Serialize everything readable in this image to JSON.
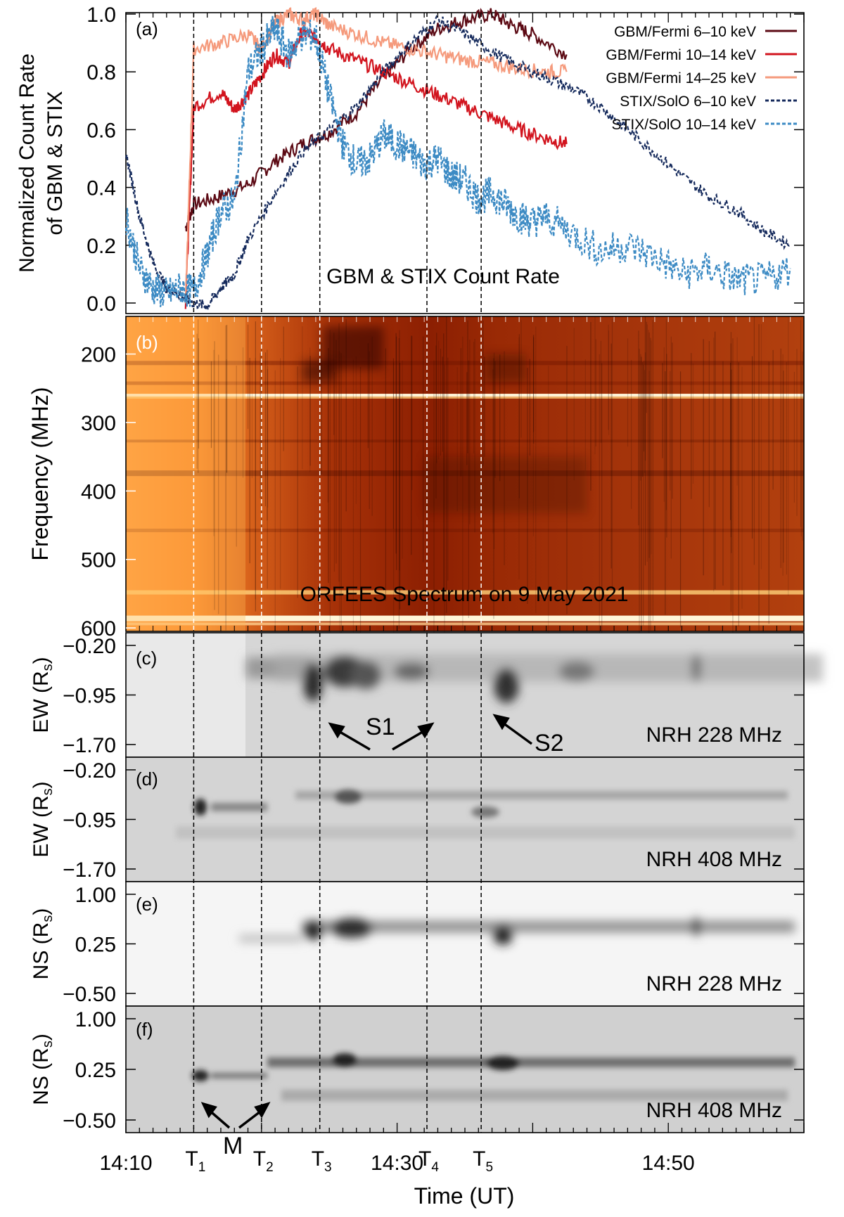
{
  "chart_data": [
    {
      "panel": "(a)",
      "type": "line",
      "title": "GBM & STIX Count Rate",
      "ylabel_line1": "Normalized Count Rate",
      "ylabel_line2": "of GBM & STIX",
      "ylim": [
        0,
        1.0
      ],
      "yticks": [
        "0.0",
        "0.2",
        "0.4",
        "0.6",
        "0.8",
        "1.0"
      ],
      "series": [
        {
          "name": "GBM/Fermi 6–10 keV",
          "color": "#5c0a14",
          "style": "solid",
          "t": [
            14.4,
            15,
            17,
            19,
            21,
            23,
            25,
            27,
            29,
            31,
            33,
            35,
            37,
            38.5,
            40,
            42.5
          ],
          "values": [
            0.26,
            0.34,
            0.37,
            0.41,
            0.49,
            0.55,
            0.59,
            0.66,
            0.78,
            0.88,
            0.95,
            0.98,
            1.0,
            0.96,
            0.93,
            0.86
          ]
        },
        {
          "name": "GBM/Fermi 10–14 keV",
          "color": "#d2141e",
          "style": "solid",
          "t": [
            14.4,
            15,
            17,
            18,
            19,
            20,
            21,
            22,
            23,
            24,
            25,
            27,
            29,
            31,
            33,
            35,
            37,
            39,
            41,
            42.5
          ],
          "values": [
            0.0,
            0.68,
            0.73,
            0.67,
            0.72,
            0.79,
            0.86,
            0.83,
            0.94,
            0.92,
            0.88,
            0.84,
            0.8,
            0.76,
            0.72,
            0.68,
            0.64,
            0.6,
            0.57,
            0.55
          ]
        },
        {
          "name": "GBM/Fermi 14–25 keV",
          "color": "#f59a7c",
          "style": "solid",
          "t": [
            14.4,
            15,
            17,
            19,
            20,
            21,
            22,
            23,
            24,
            25,
            27,
            29,
            31,
            33,
            35,
            37,
            39,
            41,
            42.5
          ],
          "values": [
            0.0,
            0.88,
            0.9,
            0.93,
            0.88,
            0.97,
            1.0,
            0.98,
            1.0,
            0.96,
            0.93,
            0.9,
            0.88,
            0.86,
            0.84,
            0.83,
            0.81,
            0.8,
            0.8
          ]
        },
        {
          "name": "STIX/SolO 6–10 keV",
          "color": "#152a5c",
          "style": "dashed",
          "t": [
            10,
            11,
            12,
            13,
            14,
            15,
            16,
            17,
            18,
            19,
            21,
            23,
            25,
            27,
            29,
            31,
            33,
            35,
            37,
            39,
            41,
            43,
            45,
            47,
            49,
            51,
            53,
            55,
            57,
            59
          ],
          "values": [
            0.52,
            0.3,
            0.14,
            0.05,
            0.03,
            0.0,
            -0.01,
            0.05,
            0.1,
            0.22,
            0.38,
            0.52,
            0.6,
            0.68,
            0.8,
            0.9,
            0.98,
            0.93,
            0.87,
            0.82,
            0.78,
            0.74,
            0.68,
            0.6,
            0.52,
            0.44,
            0.37,
            0.32,
            0.25,
            0.2
          ]
        },
        {
          "name": "STIX/SolO 10–14 keV",
          "color": "#3d8bc4",
          "style": "dashed",
          "t": [
            10,
            11,
            12,
            13,
            14,
            15,
            16,
            17,
            18,
            19,
            20,
            21,
            22,
            23,
            24,
            25,
            26,
            27,
            28,
            29,
            30,
            31,
            32,
            33,
            34,
            35,
            36,
            37,
            38,
            39,
            40,
            41,
            43,
            45,
            47,
            49,
            51,
            53,
            55,
            57,
            59
          ],
          "values": [
            0.3,
            0.12,
            0.05,
            0.03,
            0.05,
            0.04,
            0.17,
            0.32,
            0.35,
            0.8,
            0.88,
            0.95,
            0.86,
            0.93,
            0.92,
            0.72,
            0.55,
            0.48,
            0.5,
            0.58,
            0.55,
            0.52,
            0.48,
            0.5,
            0.44,
            0.42,
            0.36,
            0.38,
            0.34,
            0.3,
            0.28,
            0.3,
            0.24,
            0.18,
            0.2,
            0.16,
            0.1,
            0.12,
            0.08,
            0.08,
            0.12
          ]
        }
      ]
    },
    {
      "panel": "(b)",
      "type": "heatmap",
      "title": "ORFEES Spectrum on 9 May 2021",
      "ylabel": "Frequency (MHz)",
      "ylim": [
        145,
        605
      ],
      "yticks": [
        "200",
        "300",
        "400",
        "500",
        "600"
      ]
    },
    {
      "panel": "(c)",
      "type": "heatmap",
      "label": "NRH 228 MHz",
      "ylabel": "EW (R",
      "ylabel_sub": "s",
      "ylabel_close": ")",
      "yticks": [
        "−0.20",
        "−0.95",
        "−1.70"
      ]
    },
    {
      "panel": "(d)",
      "type": "heatmap",
      "label": "NRH 408 MHz",
      "ylabel": "EW (R",
      "ylabel_sub": "s",
      "ylabel_close": ")",
      "yticks": [
        "−0.20",
        "−0.95",
        "−1.70"
      ]
    },
    {
      "panel": "(e)",
      "type": "heatmap",
      "label": "NRH 228 MHz",
      "ylabel": "NS (R",
      "ylabel_sub": "s",
      "ylabel_close": ")",
      "yticks": [
        "1.00",
        "0.25",
        "−0.50"
      ]
    },
    {
      "panel": "(f)",
      "type": "heatmap",
      "label": "NRH 408 MHz",
      "ylabel": "NS (R",
      "ylabel_sub": "s",
      "ylabel_close": ")",
      "yticks": [
        "1.00",
        "0.25",
        "−0.50"
      ]
    }
  ],
  "shared_axis": {
    "xlabel": "Time (UT)",
    "xlim_minutes_after_14h": [
      10,
      60
    ],
    "xtick_labels": [
      "14:10",
      "14:30",
      "14:50"
    ],
    "xtick_values": [
      10,
      30,
      50
    ]
  },
  "time_markers": [
    {
      "label": "T",
      "sub": "1",
      "t": 15.0
    },
    {
      "label": "T",
      "sub": "2",
      "t": 20.0
    },
    {
      "label": "T",
      "sub": "3",
      "t": 24.3
    },
    {
      "label": "T",
      "sub": "4",
      "t": 32.2
    },
    {
      "label": "T",
      "sub": "5",
      "t": 36.2
    }
  ],
  "annotations": {
    "s1": "S1",
    "s2": "S2",
    "m": "M"
  },
  "colors": {
    "axis": "#000000",
    "hot_low": "#ffb04a",
    "hot_high": "#8a1a00"
  }
}
